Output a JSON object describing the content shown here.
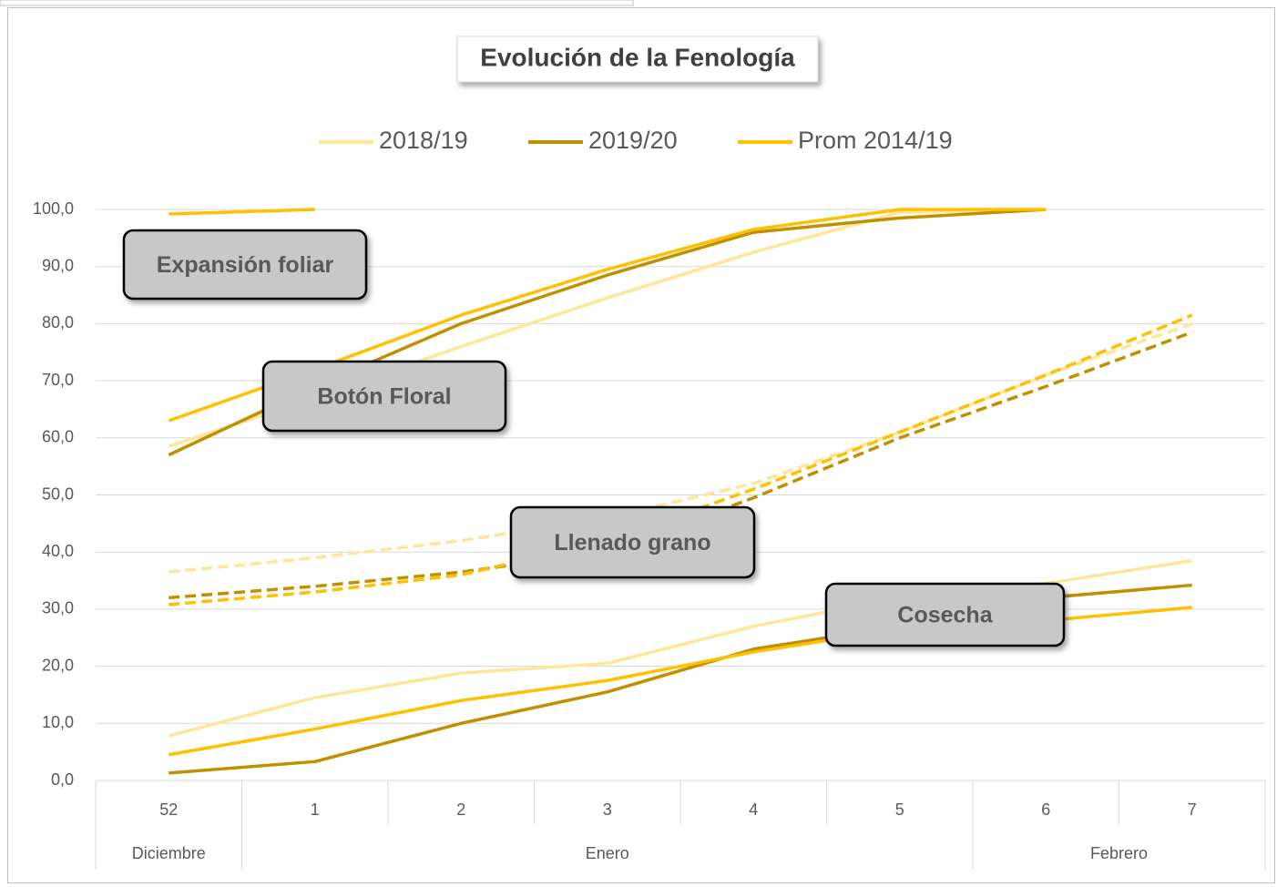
{
  "chart_data": {
    "type": "line",
    "title": "Evolución  de la Fenología",
    "categories": [
      "52",
      "1",
      "2",
      "3",
      "4",
      "5",
      "6",
      "7"
    ],
    "month_groups": [
      {
        "label": "Diciembre",
        "count": 1
      },
      {
        "label": "Enero",
        "count": 5
      },
      {
        "label": "Febrero",
        "count": 2
      }
    ],
    "stages": [
      {
        "label": "Expansión foliar",
        "dashed": false
      },
      {
        "label": "Botón Floral",
        "dashed": false
      },
      {
        "label": "Llenado grano",
        "dashed": true
      },
      {
        "label": "Cosecha",
        "dashed": false
      }
    ],
    "series": [
      {
        "name": "2018/19",
        "color": "#ffe699",
        "values": [
          [
            null,
            null,
            null,
            null,
            null,
            null,
            null,
            null
          ],
          [
            58.5,
            67,
            76,
            84.5,
            92.5,
            99.5,
            100,
            null
          ],
          [
            36.5,
            39,
            42,
            46,
            52,
            61,
            71,
            80
          ],
          [
            7.8,
            14.5,
            18.8,
            20.5,
            27,
            32,
            34.5,
            38.5
          ]
        ]
      },
      {
        "name": "2019/20",
        "color": "#bf9000",
        "values": [
          [
            null,
            null,
            null,
            null,
            null,
            null,
            null,
            null
          ],
          [
            57,
            69,
            80,
            88.5,
            96,
            98.5,
            100,
            null
          ],
          [
            32,
            34,
            36.5,
            40,
            49.5,
            60,
            69,
            78.5
          ],
          [
            1.3,
            3.3,
            10,
            15.5,
            23,
            27,
            32,
            34.2
          ]
        ]
      },
      {
        "name": "Prom 2014/19",
        "color": "#ffc000",
        "values": [
          [
            99.2,
            100,
            null,
            null,
            null,
            null,
            null,
            null
          ],
          [
            63,
            72,
            81.5,
            89.5,
            96.5,
            100,
            100,
            null
          ],
          [
            30.8,
            33,
            36,
            42,
            51,
            61,
            71,
            81.5
          ],
          [
            4.5,
            9,
            14,
            17.5,
            22.5,
            26.5,
            28,
            30.3
          ]
        ]
      }
    ],
    "ylim": [
      0,
      100
    ],
    "yticks": [
      {
        "value": 0,
        "label": "0,0"
      },
      {
        "value": 10,
        "label": "10,0"
      },
      {
        "value": 20,
        "label": "20,0"
      },
      {
        "value": 30,
        "label": "30,0"
      },
      {
        "value": 40,
        "label": "40,0"
      },
      {
        "value": 50,
        "label": "50,0"
      },
      {
        "value": 60,
        "label": "60,0"
      },
      {
        "value": 70,
        "label": "70,0"
      },
      {
        "value": 80,
        "label": "80,0"
      },
      {
        "value": 90,
        "label": "90,0"
      },
      {
        "value": 100,
        "label": "100,0"
      }
    ],
    "grid": true,
    "legend": "top"
  }
}
